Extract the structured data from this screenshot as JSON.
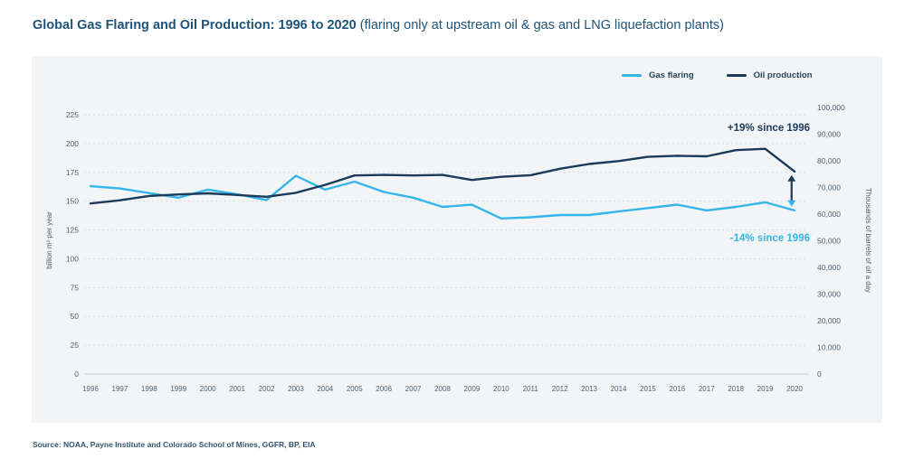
{
  "title": {
    "main": "Global Gas Flaring and Oil Production: 1996 to 2020",
    "sub": " (flaring only at upstream oil & gas and LNG liquefaction plants)"
  },
  "source": "Source: NOAA, Payne Institute and Colorado School of Mines, GGFR, BP, EIA",
  "colors": {
    "gas_flaring": "#35b6ea",
    "oil_production": "#1b3a5a",
    "grid": "#d7dbdf",
    "panel_bg": "#f2f4f6",
    "tick_text": "#4f6272",
    "title_text": "#1e547a"
  },
  "legend": [
    {
      "label": "Gas flaring",
      "color": "#35b6ea"
    },
    {
      "label": "Oil production",
      "color": "#1b3a5a"
    }
  ],
  "annotations": {
    "oil": "+19% since 1996",
    "gas": "-14% since 1996"
  },
  "axes": {
    "left": {
      "title": "billion m³ per year",
      "ticks": [
        "0",
        "25",
        "50",
        "75",
        "100",
        "125",
        "150",
        "175",
        "200",
        "225"
      ],
      "max": 225
    },
    "right": {
      "title": "Thousands of barrels of oil a day",
      "ticks": [
        "0",
        "10,000",
        "20,000",
        "30,000",
        "40,000",
        "50,000",
        "60,000",
        "70,000",
        "80,000",
        "90,000",
        "100,000"
      ],
      "max": 100000
    }
  },
  "chart_data": {
    "type": "line",
    "title": "Global Gas Flaring and Oil Production: 1996 to 2020",
    "x": [
      1996,
      1997,
      1998,
      1999,
      2000,
      2001,
      2002,
      2003,
      2004,
      2005,
      2006,
      2007,
      2008,
      2009,
      2010,
      2011,
      2012,
      2013,
      2014,
      2015,
      2016,
      2017,
      2018,
      2019,
      2020
    ],
    "series": [
      {
        "name": "Gas flaring",
        "axis": "left",
        "unit": "billion m³ per year",
        "color": "#35b6ea",
        "values": [
          163,
          161,
          157,
          153,
          160,
          156,
          151,
          172,
          160,
          167,
          158,
          153,
          145,
          147,
          135,
          136,
          138,
          138,
          141,
          144,
          147,
          142,
          145,
          149,
          142
        ]
      },
      {
        "name": "Oil production",
        "axis": "right",
        "unit": "thousand barrels of oil a day",
        "color": "#1b3a5a",
        "values": [
          64000,
          65200,
          66800,
          67400,
          67800,
          67200,
          66500,
          68000,
          71000,
          74500,
          74700,
          74500,
          74700,
          72800,
          74000,
          74600,
          77000,
          78800,
          79900,
          81500,
          81900,
          81700,
          84000,
          84500,
          76000
        ]
      }
    ],
    "ylim_left": [
      0,
      225
    ],
    "ylim_right": [
      0,
      100000
    ],
    "grid": "dotted horizontal at every left-axis tick, solid baseline at 0",
    "legend_position": "top-right",
    "arrow": {
      "x_year": 2019.9,
      "gas_value": 146,
      "oil_value": 76000
    }
  }
}
